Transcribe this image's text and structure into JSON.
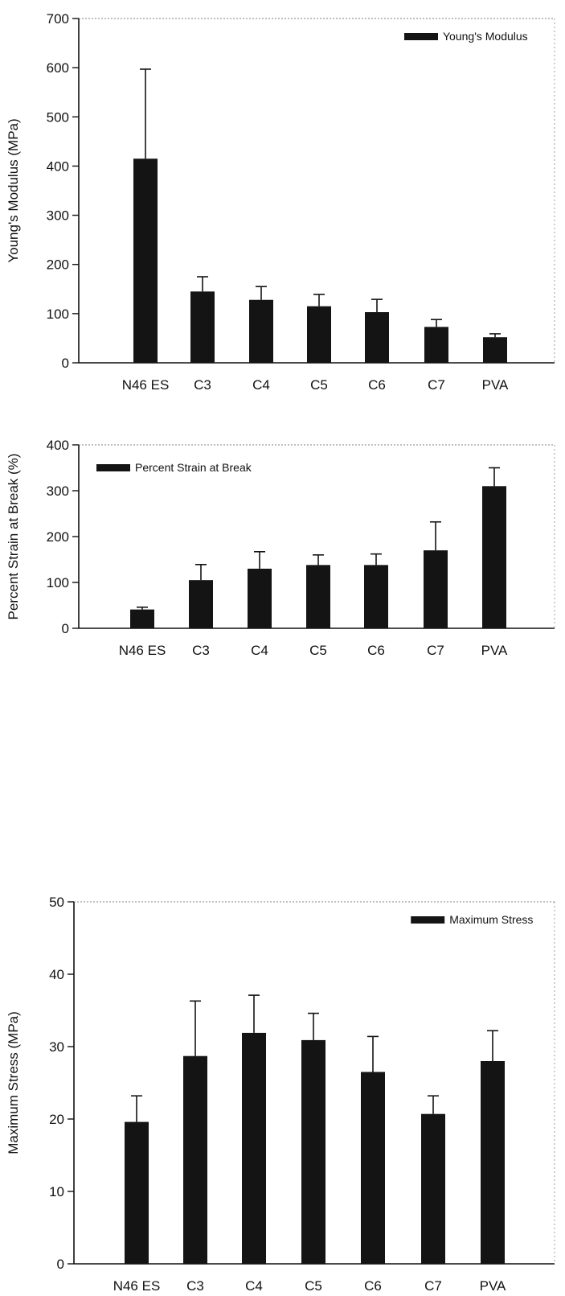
{
  "chart_data": [
    {
      "type": "bar",
      "categories": [
        "N46 ES",
        "C3",
        "C4",
        "C5",
        "C6",
        "C7",
        "PVA"
      ],
      "series": [
        {
          "name": "Young's Modulus",
          "values": [
            415,
            145,
            128,
            115,
            103,
            73,
            52
          ],
          "errors": [
            182,
            30,
            27,
            24,
            26,
            15,
            7
          ]
        }
      ],
      "ylabel": "Young's Modulus (MPa)",
      "xlabel": "",
      "ylim": [
        0,
        700
      ],
      "yticks": [
        0,
        100,
        200,
        300,
        400,
        500,
        600,
        700
      ],
      "legend": "top-right",
      "grid": false
    },
    {
      "type": "bar",
      "categories": [
        "N46 ES",
        "C3",
        "C4",
        "C5",
        "C6",
        "C7",
        "PVA"
      ],
      "series": [
        {
          "name": "Percent Strain at Break",
          "values": [
            41,
            105,
            130,
            138,
            138,
            170,
            310
          ],
          "errors": [
            5,
            34,
            37,
            22,
            24,
            62,
            40
          ]
        }
      ],
      "ylabel": "Percent Strain at Break (%)",
      "xlabel": "",
      "ylim": [
        0,
        400
      ],
      "yticks": [
        0,
        100,
        200,
        300,
        400
      ],
      "legend": "top-left",
      "grid": false
    },
    {
      "type": "bar",
      "categories": [
        "N46 ES",
        "C3",
        "C4",
        "C5",
        "C6",
        "C7",
        "PVA"
      ],
      "series": [
        {
          "name": "Maximum Stress",
          "values": [
            19.6,
            28.7,
            31.9,
            30.9,
            26.5,
            20.7,
            28.0
          ],
          "errors": [
            3.6,
            7.6,
            5.2,
            3.7,
            4.9,
            2.5,
            4.2
          ]
        }
      ],
      "ylabel": "Maximum Stress (MPa)",
      "xlabel": "",
      "ylim": [
        0,
        50
      ],
      "yticks": [
        0,
        10,
        20,
        30,
        40,
        50
      ],
      "legend": "top-right",
      "grid": false
    }
  ],
  "colors": {
    "bar": "#141414",
    "axis": "#111111"
  }
}
